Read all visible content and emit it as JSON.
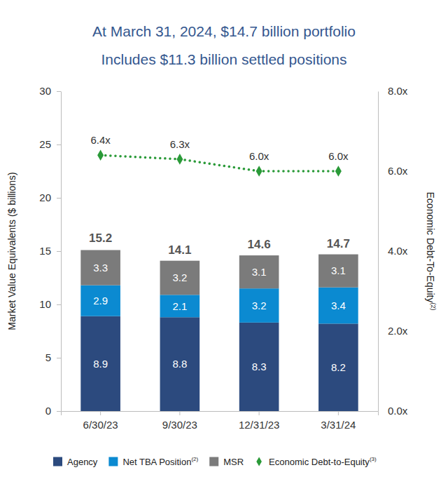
{
  "chart_data": {
    "type": "bar",
    "title": "At March 31, 2024, $14.7 billion portfolio",
    "subtitle": "Includes $11.3 billion settled positions",
    "categories": [
      "6/30/23",
      "9/30/23",
      "12/31/23",
      "3/31/24"
    ],
    "ylabel": "Market Value Equivalents ($ billions)",
    "y2label": "Economic Debt-To-Equity",
    "y2label_footnote": "(2)",
    "ylim": [
      0,
      30
    ],
    "yticks": [
      0,
      5,
      10,
      15,
      20,
      25,
      30
    ],
    "y2lim": [
      0,
      8
    ],
    "y2ticks": [
      {
        "value": 0,
        "label": "0.0x"
      },
      {
        "value": 2,
        "label": "2.0x"
      },
      {
        "value": 4,
        "label": "4.0x"
      },
      {
        "value": 6,
        "label": "6.0x"
      },
      {
        "value": 8,
        "label": "8.0x"
      }
    ],
    "stacked": true,
    "data_labels": true,
    "grid": false,
    "legend": "bottom",
    "totals": [
      15.2,
      14.1,
      14.6,
      14.7
    ],
    "series": [
      {
        "name": "Agency",
        "color": "#2c4a7e",
        "values": [
          8.9,
          8.8,
          8.3,
          8.2
        ]
      },
      {
        "name": "Net TBA Position",
        "footnote": "(2)",
        "color": "#0b8ad1",
        "values": [
          2.9,
          2.1,
          3.2,
          3.4
        ]
      },
      {
        "name": "MSR",
        "color": "#7b7b7b",
        "values": [
          3.3,
          3.2,
          3.1,
          3.1
        ]
      },
      {
        "name": "Economic Debt-to-Equity",
        "footnote": "(3)",
        "type": "line",
        "axis": "y2",
        "color": "#2a9a38",
        "marker": "diamond",
        "line_style": "dotted",
        "values": [
          6.4,
          6.3,
          6.0,
          6.0
        ],
        "value_labels": [
          "6.4x",
          "6.3x",
          "6.0x",
          "6.0x"
        ]
      }
    ]
  }
}
